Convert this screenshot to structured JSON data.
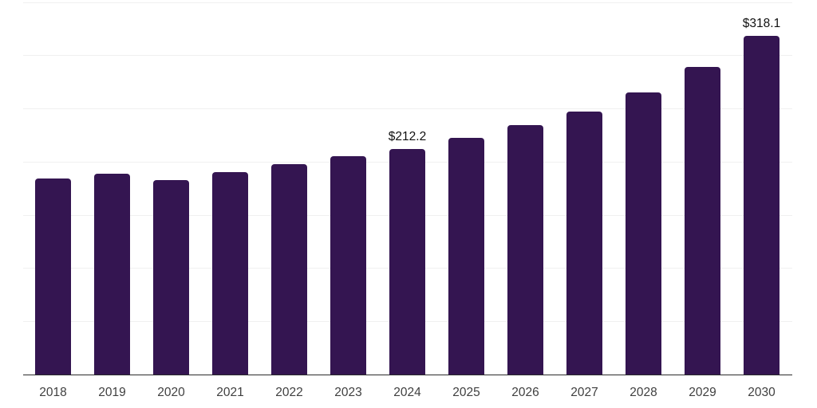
{
  "chart_data": {
    "type": "bar",
    "title": "",
    "xlabel": "",
    "ylabel": "",
    "categories": [
      "2018",
      "2019",
      "2020",
      "2021",
      "2022",
      "2023",
      "2024",
      "2025",
      "2026",
      "2027",
      "2028",
      "2029",
      "2030"
    ],
    "values": [
      184,
      189,
      183,
      190,
      198,
      205,
      212.2,
      222,
      234,
      247,
      265,
      289,
      318.1
    ],
    "data_labels": {
      "2024": "$212.2",
      "2030": "$318.1"
    },
    "ylim": [
      0,
      350
    ],
    "gridline_step": 50,
    "grid": "horizontal-only",
    "y_tick_labels_visible": false,
    "legend": "none",
    "colors": {
      "bar": "#341551",
      "gridline": "#f0f0f0",
      "axis_line": "#2b2b2b",
      "tick_label": "#404040",
      "data_label": "#111111"
    }
  }
}
